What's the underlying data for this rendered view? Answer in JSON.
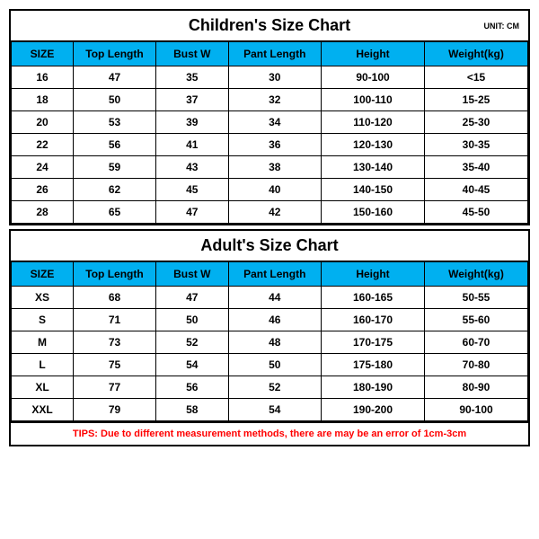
{
  "children_chart": {
    "title": "Children's Size Chart",
    "unit_label": "UNIT: CM",
    "columns": [
      "SIZE",
      "Top Length",
      "Bust W",
      "Pant Length",
      "Height",
      "Weight(kg)"
    ],
    "rows": [
      [
        "16",
        "47",
        "35",
        "30",
        "90-100",
        "<15"
      ],
      [
        "18",
        "50",
        "37",
        "32",
        "100-110",
        "15-25"
      ],
      [
        "20",
        "53",
        "39",
        "34",
        "110-120",
        "25-30"
      ],
      [
        "22",
        "56",
        "41",
        "36",
        "120-130",
        "30-35"
      ],
      [
        "24",
        "59",
        "43",
        "38",
        "130-140",
        "35-40"
      ],
      [
        "26",
        "62",
        "45",
        "40",
        "140-150",
        "40-45"
      ],
      [
        "28",
        "65",
        "47",
        "42",
        "150-160",
        "45-50"
      ]
    ],
    "header_bg": "#00b0f0",
    "border_color": "#000000",
    "title_fontsize": 18,
    "cell_fontsize": 12
  },
  "adult_chart": {
    "title": "Adult's Size Chart",
    "columns": [
      "SIZE",
      "Top Length",
      "Bust W",
      "Pant Length",
      "Height",
      "Weight(kg)"
    ],
    "rows": [
      [
        "XS",
        "68",
        "47",
        "44",
        "160-165",
        "50-55"
      ],
      [
        "S",
        "71",
        "50",
        "46",
        "160-170",
        "55-60"
      ],
      [
        "M",
        "73",
        "52",
        "48",
        "170-175",
        "60-70"
      ],
      [
        "L",
        "75",
        "54",
        "50",
        "175-180",
        "70-80"
      ],
      [
        "XL",
        "77",
        "56",
        "52",
        "180-190",
        "80-90"
      ],
      [
        "XXL",
        "79",
        "58",
        "54",
        "190-200",
        "90-100"
      ]
    ],
    "header_bg": "#00b0f0",
    "border_color": "#000000"
  },
  "tips": {
    "text": "TIPS: Due to different measurement methods, there are may be an error of 1cm-3cm",
    "color": "#ff0000",
    "fontsize": 11
  }
}
